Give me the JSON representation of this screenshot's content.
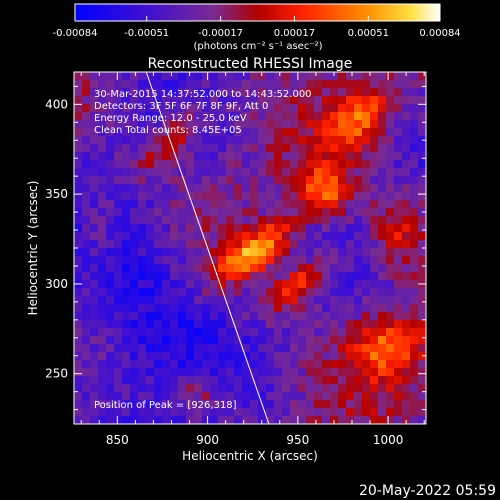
{
  "chart_data": {
    "type": "heatmap",
    "title": "Reconstructed RHESSI Image",
    "xlabel": "Heliocentric X (arcsec)",
    "ylabel": "Heliocentric Y (arcsec)",
    "xlim": [
      826,
      1021
    ],
    "ylim": [
      222,
      418
    ],
    "x_ticks": [
      850,
      900,
      950,
      1000
    ],
    "y_ticks": [
      250,
      300,
      350,
      400
    ],
    "colorbar": {
      "ticks": [
        "-0.00084",
        "-0.00051",
        "-0.00017",
        "0.00017",
        "0.00051",
        "0.00084"
      ],
      "label": "(photons cm⁻² s⁻¹ asec⁻²)",
      "min": -0.00084,
      "max": 0.00084
    },
    "annotations": {
      "time_range": "30-Mar-2015 14:37:52.000 to 14:43:52.000",
      "detectors": "Detectors: 3F 5F 6F 7F 8F 9F, Att 0",
      "energy": "Energy Range: 12.0 - 25.0 keV",
      "clean": "Clean     Total counts: 8.45E+05",
      "peak": "Position of Peak = [926,318]"
    },
    "limb_line": [
      [
        866,
        418
      ],
      [
        934,
        222
      ]
    ],
    "features": [
      {
        "x": 926,
        "y": 318,
        "sx": 18,
        "sy": 7,
        "rot": -35,
        "amp": 1.0
      },
      {
        "x": 952,
        "y": 300,
        "sx": 16,
        "sy": 7,
        "rot": -35,
        "amp": 0.75
      },
      {
        "x": 965,
        "y": 352,
        "sx": 10,
        "sy": 10,
        "rot": 0,
        "amp": 0.8
      },
      {
        "x": 985,
        "y": 392,
        "sx": 14,
        "sy": 10,
        "rot": -50,
        "amp": 0.7
      },
      {
        "x": 1000,
        "y": 265,
        "sx": 14,
        "sy": 12,
        "rot": 0,
        "amp": 0.75
      },
      {
        "x": 880,
        "y": 380,
        "sx": 18,
        "sy": 8,
        "rot": -45,
        "amp": 0.55
      },
      {
        "x": 895,
        "y": 240,
        "sx": 12,
        "sy": 8,
        "rot": 0,
        "amp": 0.45
      },
      {
        "x": 1005,
        "y": 330,
        "sx": 10,
        "sy": 14,
        "rot": 0,
        "amp": 0.5
      },
      {
        "x": 840,
        "y": 330,
        "sx": 8,
        "sy": 18,
        "rot": 0,
        "amp": 0.35
      }
    ]
  },
  "footer": {
    "date": "20-May-2022 05:59"
  }
}
